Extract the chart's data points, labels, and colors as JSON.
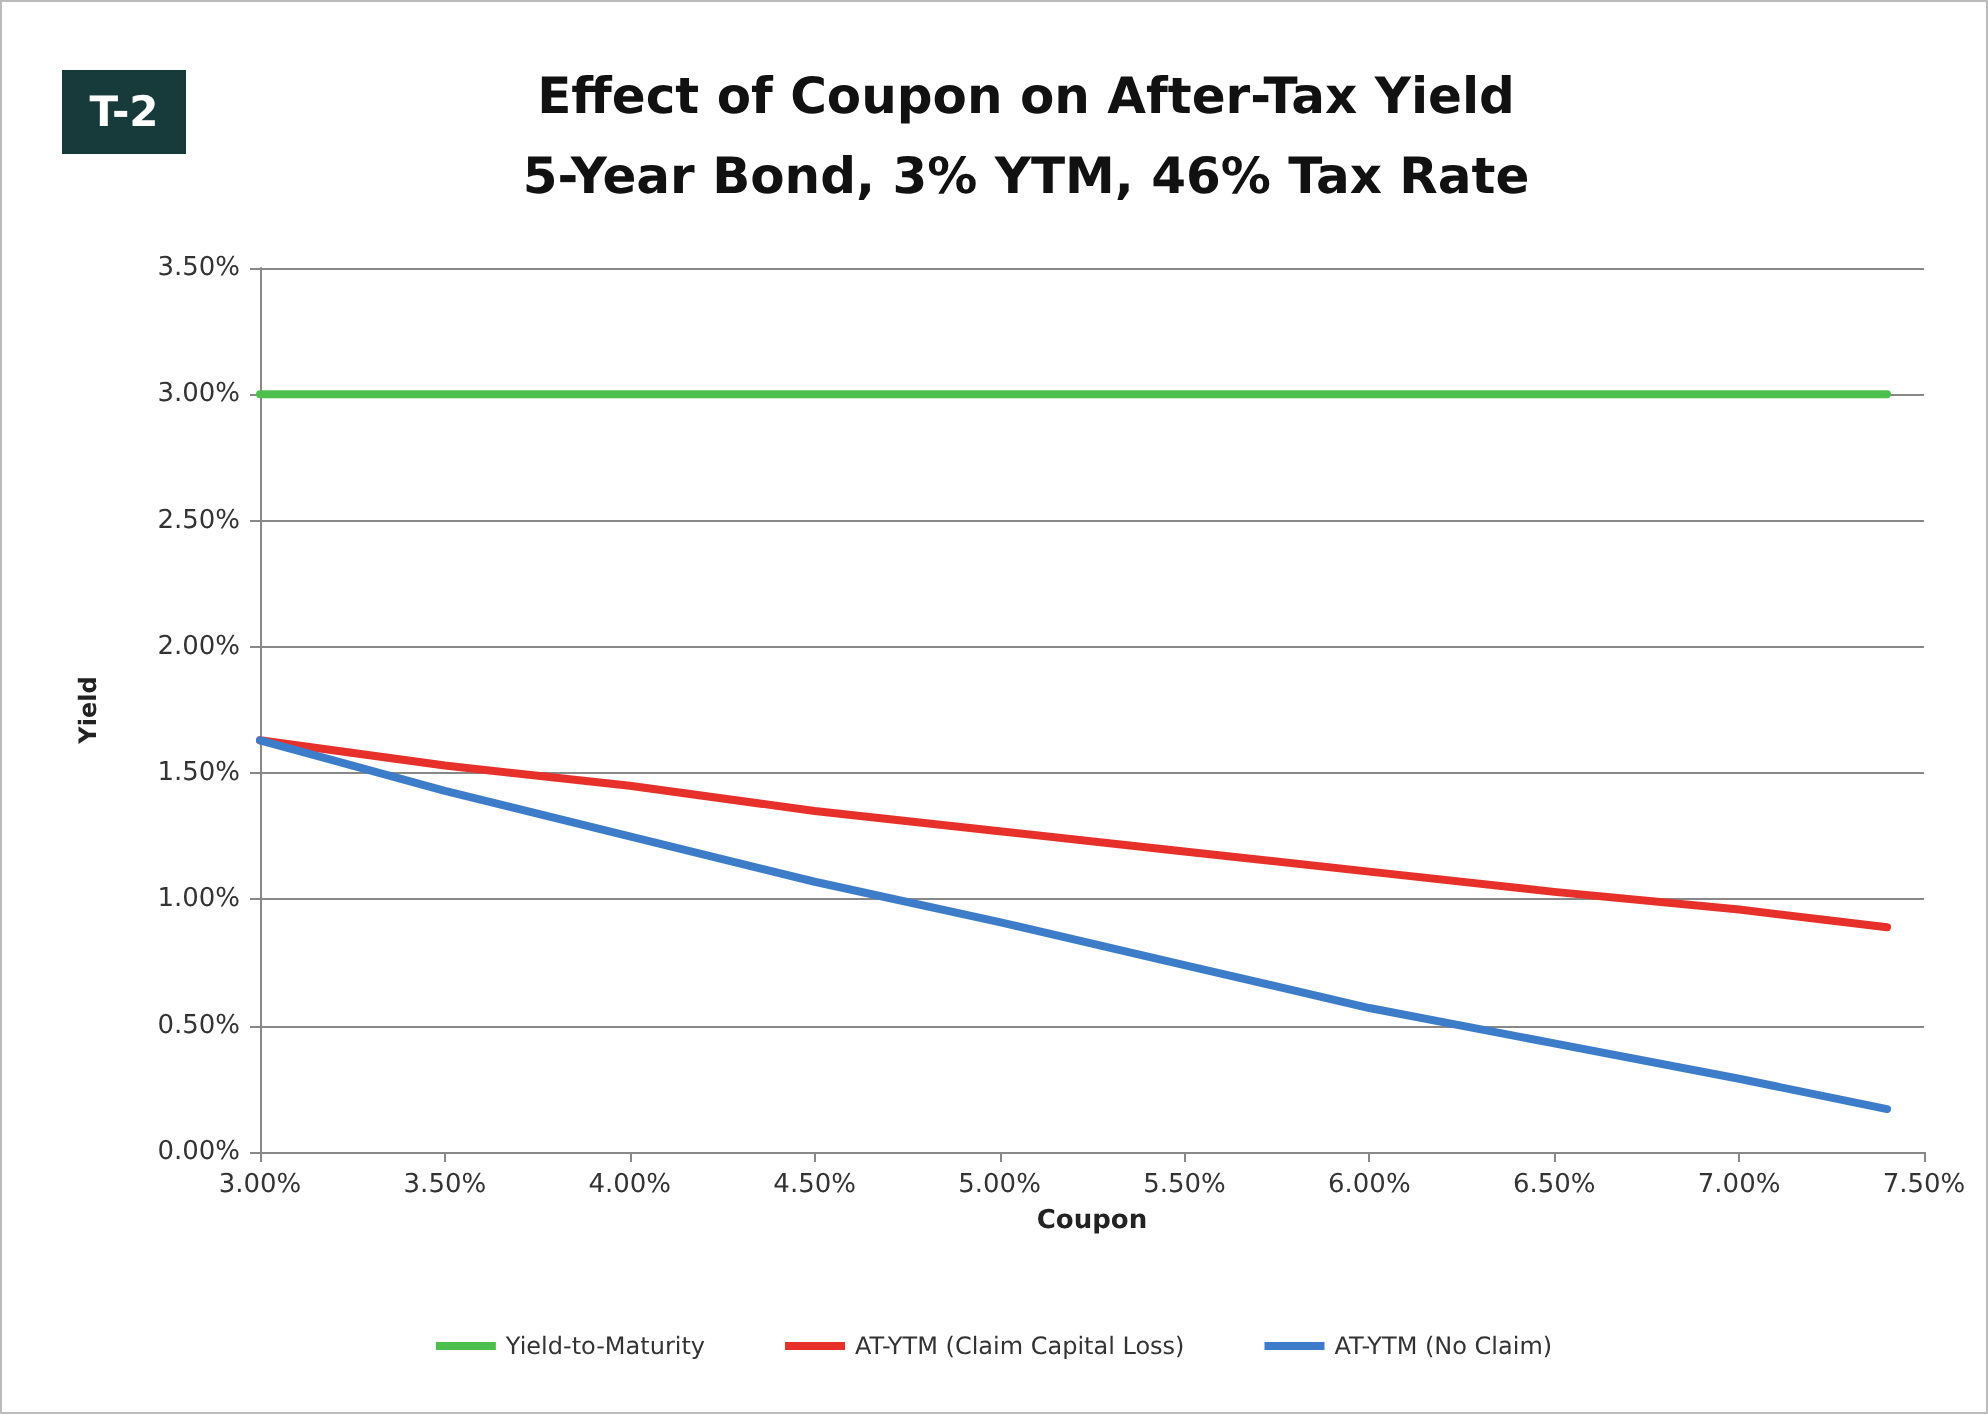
{
  "chart_data": {
    "type": "line",
    "title": "Effect of Coupon on After-Tax Yield\n5-Year Bond, 3% YTM, 46% Tax Rate",
    "xlabel": "Coupon",
    "ylabel": "Yield",
    "annotations": [
      "T-2"
    ],
    "x": [
      3.0,
      3.5,
      4.0,
      4.5,
      5.0,
      5.5,
      6.0,
      6.5,
      7.0,
      7.4
    ],
    "series": [
      {
        "name": "Yield-to-Maturity",
        "color": "#4dbf4d",
        "values": [
          3.0,
          3.0,
          3.0,
          3.0,
          3.0,
          3.0,
          3.0,
          3.0,
          3.0,
          3.0
        ]
      },
      {
        "name": "AT-YTM (Claim Capital Loss)",
        "color": "#e8302a",
        "values": [
          1.63,
          1.53,
          1.45,
          1.35,
          1.27,
          1.19,
          1.11,
          1.03,
          0.96,
          0.89
        ]
      },
      {
        "name": "AT-YTM (No Claim)",
        "color": "#3d7cc9",
        "values": [
          1.63,
          1.43,
          1.25,
          1.07,
          0.91,
          0.74,
          0.57,
          0.43,
          0.29,
          0.17
        ]
      }
    ],
    "xlim": [
      3.0,
      7.5
    ],
    "xticks": [
      {
        "value": 3.0,
        "label": "3.00%"
      },
      {
        "value": 3.5,
        "label": "3.50%"
      },
      {
        "value": 4.0,
        "label": "4.00%"
      },
      {
        "value": 4.5,
        "label": "4.50%"
      },
      {
        "value": 5.0,
        "label": "5.00%"
      },
      {
        "value": 5.5,
        "label": "5.50%"
      },
      {
        "value": 6.0,
        "label": "6.00%"
      },
      {
        "value": 6.5,
        "label": "6.50%"
      },
      {
        "value": 7.0,
        "label": "7.00%"
      },
      {
        "value": 7.5,
        "label": "7.50%"
      }
    ],
    "ylim": [
      0,
      3.5
    ],
    "yticks": [
      {
        "value": 0,
        "label": "0.00%"
      },
      {
        "value": 0.5,
        "label": "0.50%"
      },
      {
        "value": 1.0,
        "label": "1.00%"
      },
      {
        "value": 1.5,
        "label": "1.50%"
      },
      {
        "value": 2.0,
        "label": "2.00%"
      },
      {
        "value": 2.5,
        "label": "2.50%"
      },
      {
        "value": 3.0,
        "label": "3.00%"
      },
      {
        "value": 3.5,
        "label": "3.50%"
      }
    ],
    "grid": "y",
    "legend": "bottom",
    "marker": "none",
    "line_style": "solid"
  }
}
